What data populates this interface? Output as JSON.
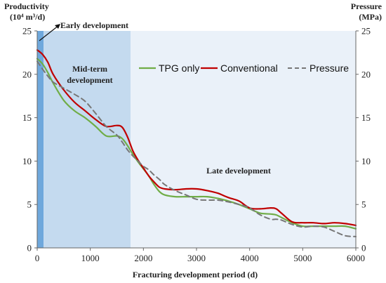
{
  "chart_data": {
    "type": "line",
    "x": [
      0,
      100,
      200,
      300,
      500,
      700,
      900,
      1100,
      1300,
      1500,
      1600,
      1700,
      1800,
      1900,
      2000,
      2100,
      2200,
      2300,
      2400,
      2600,
      2800,
      3000,
      3200,
      3400,
      3600,
      3800,
      4000,
      4200,
      4400,
      4500,
      4600,
      4800,
      5000,
      5200,
      5400,
      5600,
      5800,
      6000
    ],
    "series": [
      {
        "name": "TPG only",
        "color": "#70ad47",
        "dash": "solid",
        "axis": "left",
        "values": [
          21.8,
          21.2,
          20.2,
          19.0,
          17.0,
          15.8,
          15.0,
          14.0,
          12.9,
          12.9,
          12.6,
          11.8,
          10.8,
          9.9,
          9.1,
          8.3,
          7.3,
          6.5,
          6.1,
          5.9,
          5.9,
          5.9,
          5.9,
          5.7,
          5.4,
          5.0,
          4.5,
          4.0,
          3.9,
          3.8,
          3.5,
          2.9,
          2.5,
          2.5,
          2.5,
          2.5,
          2.5,
          2.2
        ]
      },
      {
        "name": "Conventional",
        "color": "#c00000",
        "dash": "solid",
        "axis": "left",
        "values": [
          22.8,
          22.3,
          21.4,
          20.0,
          18.2,
          16.8,
          15.8,
          14.8,
          14.0,
          14.1,
          13.9,
          12.8,
          11.2,
          10.1,
          9.2,
          8.3,
          7.6,
          7.0,
          6.8,
          6.7,
          6.8,
          6.8,
          6.6,
          6.3,
          5.8,
          5.4,
          4.6,
          4.5,
          4.6,
          4.5,
          4.0,
          3.0,
          2.9,
          2.9,
          2.8,
          2.9,
          2.8,
          2.6
        ]
      },
      {
        "name": "Pressure",
        "color": "#777777",
        "dash": "dashed",
        "axis": "right",
        "values": [
          21.5,
          20.6,
          19.8,
          19.1,
          18.4,
          17.7,
          16.9,
          15.5,
          14.0,
          13.0,
          12.2,
          11.3,
          10.6,
          10.0,
          9.4,
          9.0,
          8.4,
          7.9,
          7.3,
          6.6,
          6.1,
          5.6,
          5.5,
          5.5,
          5.3,
          5.0,
          4.6,
          3.8,
          3.3,
          3.3,
          3.2,
          2.7,
          2.4,
          2.5,
          2.4,
          1.9,
          1.4,
          1.3
        ]
      }
    ],
    "xlabel": "Fracturing development period (d)",
    "ylabel_left": [
      "Productivity",
      "(10⁴ m³/d)"
    ],
    "ylabel_right": [
      "Pressure",
      "(MPa)"
    ],
    "xlim": [
      0,
      6000
    ],
    "ylim": [
      0,
      25
    ],
    "x_ticks": [
      0,
      1000,
      2000,
      3000,
      4000,
      5000,
      6000
    ],
    "y_ticks": [
      0,
      5,
      10,
      15,
      20,
      25
    ],
    "grid": false,
    "legend_position": "top-right",
    "regions": [
      {
        "label": "Early development",
        "from": 0,
        "to": 120,
        "color": "#6fa8dc"
      },
      {
        "label_lines": [
          "Mid-term",
          "development"
        ],
        "from": 120,
        "to": 1760,
        "color": "#c4daef"
      },
      {
        "label": "Late development",
        "from": 1760,
        "to": 6000,
        "color": "#eaf1f9"
      }
    ]
  }
}
